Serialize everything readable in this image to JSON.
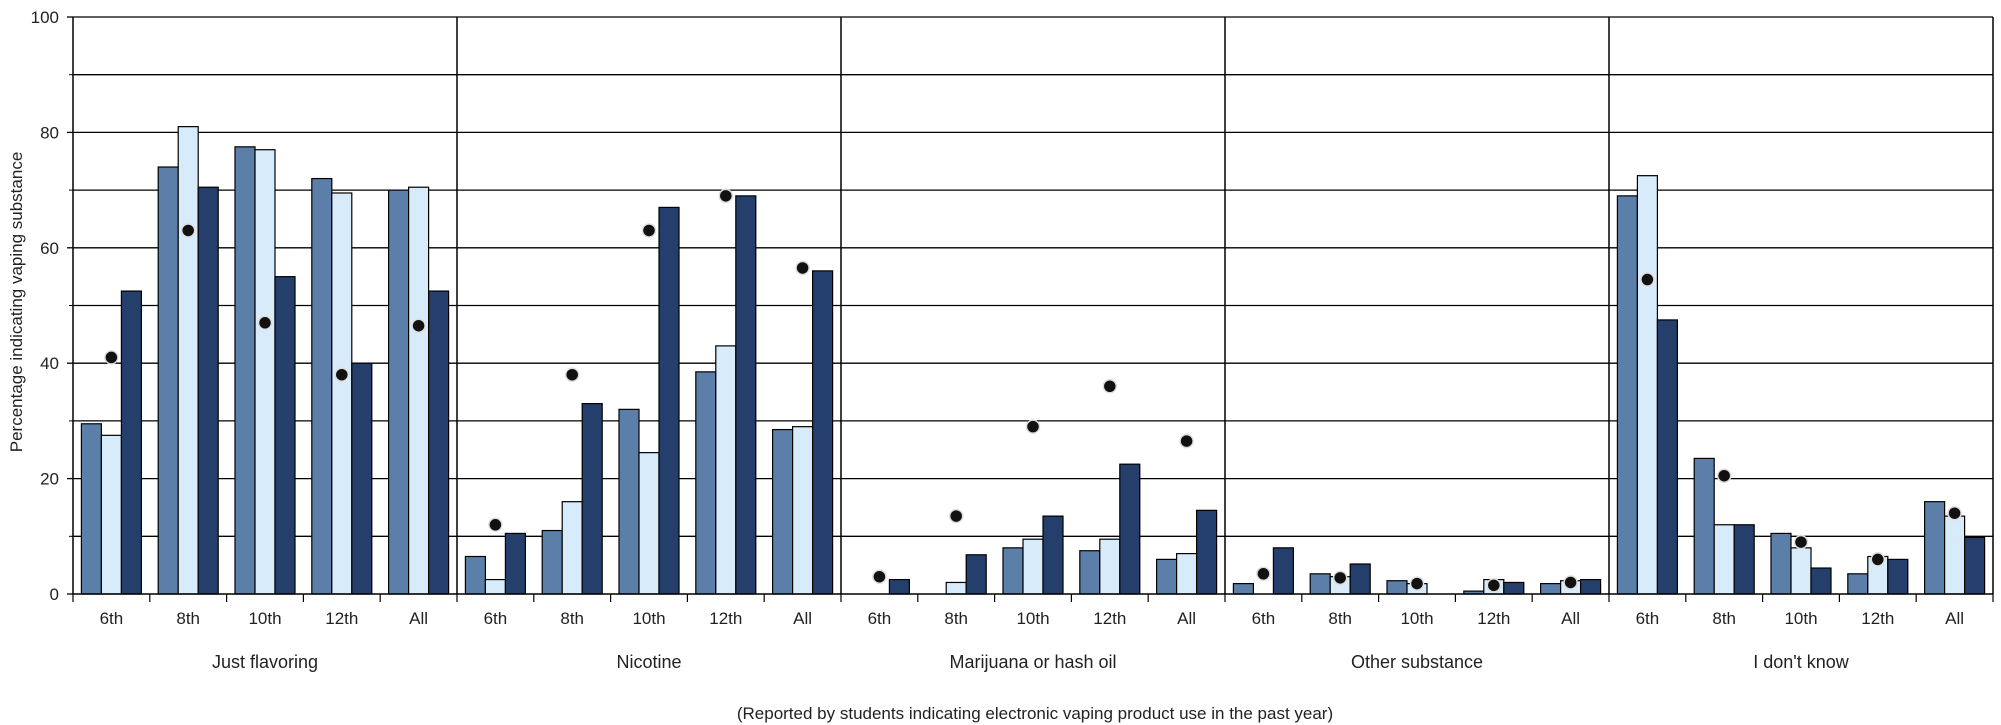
{
  "chart_data": {
    "type": "bar",
    "ylabel": "Percentage indicating vaping substance",
    "xlabel": "(Reported by students indicating electronic vaping product use in the past year)",
    "ylim": [
      0,
      100
    ],
    "yticks": [
      0,
      20,
      40,
      60,
      80,
      100
    ],
    "grid": true,
    "groups": [
      "Just flavoring",
      "Nicotine",
      "Marijuana or hash oil",
      "Other substance",
      "I don't know"
    ],
    "categories": [
      "6th",
      "8th",
      "10th",
      "12th",
      "All"
    ],
    "series": [
      {
        "values": [
          [
            29.5,
            74,
            77.5,
            72,
            70
          ],
          [
            6.5,
            11,
            32,
            38.5,
            28.5
          ],
          [
            0,
            0,
            8,
            7.5,
            6
          ],
          [
            1.8,
            3.5,
            2.3,
            0.5,
            1.8
          ],
          [
            69,
            23.5,
            10.5,
            3.5,
            16
          ]
        ]
      },
      {
        "values": [
          [
            27.5,
            81,
            77,
            69.5,
            70.5
          ],
          [
            2.5,
            16,
            24.5,
            43,
            29
          ],
          [
            0,
            2,
            9.5,
            9.5,
            7
          ],
          [
            0,
            3,
            1.8,
            2.5,
            2.3
          ],
          [
            72.5,
            12,
            8,
            6.5,
            13.5
          ]
        ]
      },
      {
        "values": [
          [
            52.5,
            70.5,
            55,
            40,
            52.5
          ],
          [
            10.5,
            33,
            67,
            69,
            56
          ],
          [
            2.5,
            6.8,
            13.5,
            22.5,
            14.5
          ],
          [
            8,
            5.2,
            0,
            2,
            2.5
          ],
          [
            47.5,
            12,
            4.5,
            6,
            9.8
          ]
        ]
      }
    ],
    "markers": [
      [
        41,
        63,
        47,
        38,
        46.5
      ],
      [
        12,
        38,
        63,
        69,
        56.5
      ],
      [
        3,
        13.5,
        29,
        36,
        26.5
      ],
      [
        3.5,
        2.8,
        1.8,
        1.5,
        2
      ],
      [
        54.5,
        20.5,
        9,
        6,
        14
      ]
    ],
    "colors": {
      "series": [
        "#5b7fa8",
        "#d8ebfb",
        "#243f6b"
      ],
      "marker": "#111111",
      "marker_outline": "#dddddd",
      "grid": "#000000"
    }
  }
}
